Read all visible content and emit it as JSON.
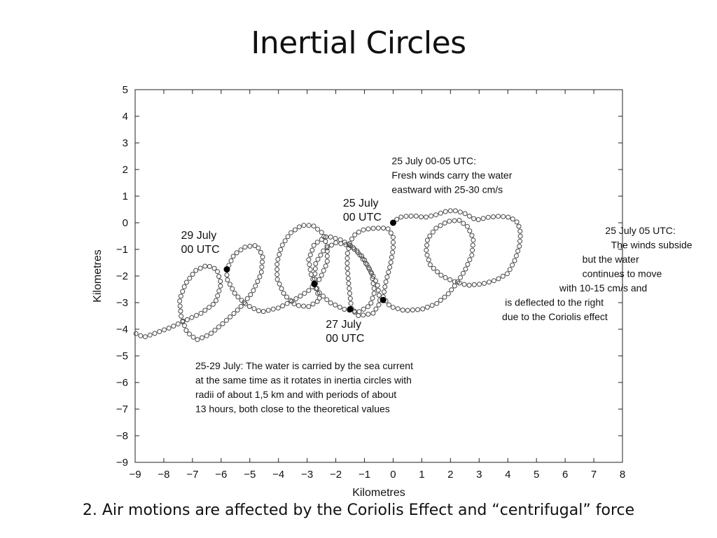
{
  "slide": {
    "title": "Inertial Circles",
    "caption": "2. Air motions are affected by the Coriolis Effect and “centrifugal” force"
  },
  "chart_data": {
    "type": "scatter",
    "title": "",
    "xlabel": "Kilometres",
    "ylabel": "Kilometres",
    "xlim": [
      -9,
      8
    ],
    "ylim": [
      -9,
      5
    ],
    "x_ticks": [
      -9,
      -8,
      -7,
      -6,
      -5,
      -4,
      -3,
      -2,
      -1,
      0,
      1,
      2,
      3,
      4,
      5,
      6,
      7,
      8
    ],
    "y_ticks": [
      5,
      4,
      3,
      2,
      1,
      0,
      -1,
      -2,
      -3,
      -4,
      -5,
      -6,
      -7,
      -8,
      -9
    ],
    "x_tick_labels": [
      "−9",
      "−8",
      "−7",
      "−6",
      "−5",
      "−4",
      "−3",
      "−2",
      "−1",
      "0",
      "1",
      "2",
      "3",
      "4",
      "5",
      "6",
      "7",
      "8"
    ],
    "y_tick_labels": [
      "5",
      "4",
      "3",
      "2",
      "1",
      "0",
      "−1",
      "−2",
      "−3",
      "−4",
      "−5",
      "−6",
      "−7",
      "−8",
      "−9"
    ],
    "grid": false,
    "legend": "none",
    "series": [
      {
        "marker": "open-circle",
        "color": "#444444",
        "points": [
          [
            0,
            0
          ],
          [
            0.2,
            0.2
          ],
          [
            0.5,
            0.25
          ],
          [
            0.8,
            0.25
          ],
          [
            1.1,
            0.2
          ],
          [
            1.5,
            0.3
          ],
          [
            1.9,
            0.45
          ],
          [
            2.2,
            0.45
          ],
          [
            2.5,
            0.35
          ],
          [
            2.9,
            0.1
          ],
          [
            3.3,
            0.2
          ],
          [
            3.7,
            0.25
          ],
          [
            4.1,
            0.2
          ],
          [
            4.35,
            0
          ],
          [
            4.45,
            -0.4
          ],
          [
            4.4,
            -0.9
          ],
          [
            4.25,
            -1.4
          ],
          [
            4.0,
            -1.9
          ],
          [
            3.6,
            -2.15
          ],
          [
            3.1,
            -2.3
          ],
          [
            2.6,
            -2.35
          ],
          [
            2.1,
            -2.2
          ],
          [
            1.7,
            -2.0
          ],
          [
            1.3,
            -1.6
          ],
          [
            1.15,
            -1.1
          ],
          [
            1.2,
            -0.6
          ],
          [
            1.5,
            -0.2
          ],
          [
            1.9,
            0.05
          ],
          [
            2.3,
            0.1
          ],
          [
            2.6,
            -0.15
          ],
          [
            2.8,
            -0.6
          ],
          [
            2.75,
            -1.2
          ],
          [
            2.5,
            -1.8
          ],
          [
            2.2,
            -2.3
          ],
          [
            1.9,
            -2.7
          ],
          [
            1.5,
            -3.05
          ],
          [
            1.0,
            -3.25
          ],
          [
            0.4,
            -3.3
          ],
          [
            -0.1,
            -3.15
          ],
          [
            -0.35,
            -2.8
          ],
          [
            -0.25,
            -2.2
          ],
          [
            -0.1,
            -1.6
          ],
          [
            0.0,
            -1.0
          ],
          [
            0.0,
            -0.5
          ],
          [
            -0.2,
            -0.2
          ],
          [
            -0.6,
            -0.2
          ],
          [
            -1.0,
            -0.25
          ],
          [
            -1.3,
            -0.4
          ],
          [
            -1.5,
            -0.7
          ],
          [
            -1.6,
            -1.2
          ],
          [
            -1.6,
            -1.7
          ],
          [
            -1.55,
            -2.3
          ],
          [
            -1.5,
            -2.8
          ],
          [
            -1.45,
            -3.25
          ],
          [
            -1.2,
            -3.5
          ],
          [
            -0.7,
            -3.4
          ],
          [
            -0.45,
            -3.0
          ],
          [
            -0.55,
            -2.3
          ],
          [
            -0.9,
            -1.6
          ],
          [
            -1.3,
            -1.0
          ],
          [
            -1.8,
            -0.65
          ],
          [
            -2.3,
            -0.5
          ],
          [
            -2.75,
            -0.8
          ],
          [
            -2.95,
            -1.4
          ],
          [
            -2.85,
            -2.0
          ],
          [
            -2.6,
            -2.6
          ],
          [
            -2.2,
            -3.0
          ],
          [
            -1.7,
            -3.25
          ],
          [
            -1.2,
            -3.35
          ],
          [
            -0.8,
            -3.1
          ],
          [
            -0.65,
            -2.6
          ],
          [
            -0.75,
            -1.9
          ],
          [
            -1.05,
            -1.3
          ],
          [
            -1.5,
            -0.85
          ],
          [
            -2.0,
            -0.75
          ],
          [
            -2.4,
            -1.0
          ],
          [
            -2.7,
            -1.5
          ],
          [
            -2.75,
            -2.3
          ],
          [
            -2.55,
            -2.9
          ],
          [
            -2.95,
            -3.15
          ],
          [
            -3.4,
            -3.1
          ],
          [
            -3.8,
            -2.7
          ],
          [
            -4.05,
            -2.1
          ],
          [
            -4.05,
            -1.5
          ],
          [
            -3.9,
            -0.9
          ],
          [
            -3.6,
            -0.4
          ],
          [
            -3.2,
            -0.1
          ],
          [
            -2.8,
            -0.1
          ],
          [
            -2.45,
            -0.4
          ],
          [
            -2.3,
            -0.9
          ],
          [
            -2.3,
            -1.5
          ],
          [
            -2.55,
            -2.1
          ],
          [
            -2.95,
            -2.55
          ],
          [
            -3.45,
            -2.9
          ],
          [
            -4.0,
            -3.2
          ],
          [
            -4.6,
            -3.35
          ],
          [
            -5.1,
            -3.1
          ],
          [
            -5.5,
            -2.7
          ],
          [
            -5.8,
            -2.1
          ],
          [
            -5.8,
            -1.75
          ],
          [
            -5.55,
            -1.2
          ],
          [
            -5.15,
            -0.9
          ],
          [
            -4.75,
            -0.85
          ],
          [
            -4.55,
            -1.25
          ],
          [
            -4.6,
            -1.9
          ],
          [
            -4.9,
            -2.6
          ],
          [
            -5.35,
            -3.2
          ],
          [
            -5.9,
            -3.75
          ],
          [
            -6.4,
            -4.2
          ],
          [
            -6.85,
            -4.4
          ],
          [
            -7.2,
            -4.1
          ],
          [
            -7.4,
            -3.5
          ],
          [
            -7.45,
            -2.9
          ],
          [
            -7.25,
            -2.3
          ],
          [
            -6.9,
            -1.8
          ],
          [
            -6.5,
            -1.6
          ],
          [
            -6.15,
            -1.75
          ],
          [
            -6.0,
            -2.3
          ],
          [
            -6.2,
            -3.0
          ],
          [
            -6.7,
            -3.4
          ],
          [
            -7.3,
            -3.7
          ],
          [
            -7.8,
            -3.95
          ],
          [
            -8.3,
            -4.15
          ],
          [
            -8.7,
            -4.3
          ],
          [
            -9,
            -4.15
          ]
        ]
      }
    ],
    "highlighted_points": [
      {
        "x": 0,
        "y": 0,
        "label": "25 July 00 UTC"
      },
      {
        "x": -0.35,
        "y": -2.9,
        "label": ""
      },
      {
        "x": -1.5,
        "y": -3.25,
        "label": "27 July 00 UTC"
      },
      {
        "x": -2.75,
        "y": -2.3,
        "label": ""
      },
      {
        "x": -5.8,
        "y": -1.75,
        "label": "29 July 00 UTC"
      }
    ],
    "annotations": [
      {
        "x": -0.05,
        "y": 2.2,
        "anchor": "start",
        "size": "small",
        "lines": [
          "25 July 00-05 UTC:",
          "Fresh winds carry the water",
          "eastward with 25-30 cm/s"
        ]
      },
      {
        "x": -1.75,
        "y": 0.6,
        "anchor": "start",
        "size": "big",
        "lines": [
          "25 July",
          "00 UTC"
        ]
      },
      {
        "x": -7.4,
        "y": -0.6,
        "anchor": "start",
        "size": "big",
        "lines": [
          "29 July",
          "00 UTC"
        ]
      },
      {
        "x": -2.35,
        "y": -3.95,
        "anchor": "start",
        "size": "big",
        "lines": [
          "27 July",
          "00 UTC"
        ]
      },
      {
        "x": 4.8,
        "y": -0.42,
        "anchor": "middle",
        "size": "small",
        "lines": [
          "25 July 05 UTC:",
          "The winds subside",
          "but the water",
          "continues to move",
          "with 10-15 cm/s and",
          "is deflected to the right",
          "due to the Coriolis effect"
        ],
        "x_offsets": [
          2.6,
          2.8,
          1.8,
          1.8,
          1.0,
          -0.9,
          -1.0
        ]
      },
      {
        "x": -6.9,
        "y": -5.5,
        "anchor": "start",
        "size": "small",
        "lines": [
          "25-29 July: The water is carried by the sea current",
          "at the same time as it rotates in inertia circles with",
          "radii of about 1,5 km and with periods of about",
          "13 hours, both close to the theoretical values"
        ]
      }
    ]
  }
}
